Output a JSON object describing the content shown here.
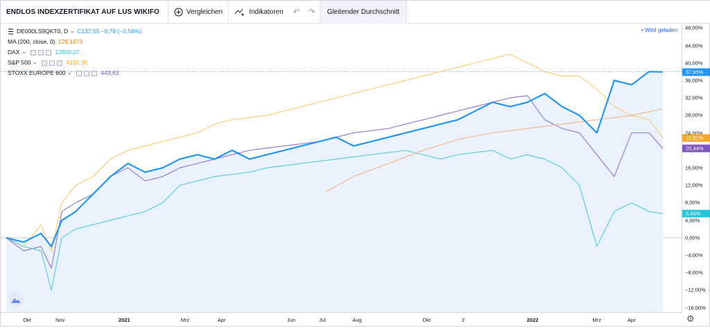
{
  "toolbar": {
    "title": "ENDLOS INDEXZERTIFIKAT AUF LUS WIKIFO",
    "compare_label": "Vergleichen",
    "indicators_label": "Indikatoren",
    "undo_label": "↶",
    "redo_label": "↷",
    "ma_tab_label": "Gleitender Durchschnitt"
  },
  "legend": {
    "main": {
      "symbol": "DE000LS9QKT0, D",
      "values": "C137,55  −0,78 (−0,56%)"
    },
    "ma": {
      "label": "MA (200, close, 0)",
      "value": "129,1673"
    },
    "dax": {
      "label": "DAX",
      "value": "13939,07"
    },
    "sp500": {
      "label": "S&P 500",
      "value": "4155,38"
    },
    "stoxx": {
      "label": "STOXX EUROPE 600",
      "value": "443,83"
    }
  },
  "loaded_label": "• Wird geladen",
  "colors": {
    "main": "#2196f3",
    "ma": "#f6b78e",
    "dax": "#5bcdd9",
    "sp500": "#f9ce7a",
    "stoxx": "#9b7ad1",
    "area": "#eaf3fd"
  },
  "icons": {
    "compare": "plus-circle-icon",
    "indicators": "indicators-icon",
    "settings": "gear-icon",
    "logo": "tradingview-logo-icon"
  },
  "chart_data": {
    "type": "line",
    "ylabel": "",
    "ylim": [
      -17,
      49
    ],
    "y_ticks": [
      "48,00%",
      "44,00%",
      "40,00%",
      "36,00%",
      "32,00%",
      "28,00%",
      "24,00%",
      "20,00%",
      "16,00%",
      "12,00%",
      "8,00%",
      "4,00%",
      "0,00%",
      "−4,00%",
      "−8,00%",
      "−12,00%",
      "−16,00%"
    ],
    "x_ticks": [
      {
        "label": "Okt",
        "x": 0.6,
        "bold": false
      },
      {
        "label": "Nov",
        "x": 1.55,
        "bold": false
      },
      {
        "label": "2021",
        "x": 3.4,
        "bold": true
      },
      {
        "label": "Mrz",
        "x": 5.15,
        "bold": false
      },
      {
        "label": "Apr",
        "x": 6.2,
        "bold": false
      },
      {
        "label": "Jun",
        "x": 8.2,
        "bold": false
      },
      {
        "label": "Jul",
        "x": 9.1,
        "bold": false
      },
      {
        "label": "Aug",
        "x": 10.1,
        "bold": false
      },
      {
        "label": "Okt",
        "x": 12.1,
        "bold": false
      },
      {
        "label": "2",
        "x": 13.15,
        "bold": false
      },
      {
        "label": "2022",
        "x": 15.15,
        "bold": true
      },
      {
        "label": "Mrz",
        "x": 17.0,
        "bold": false
      },
      {
        "label": "Apr",
        "x": 18.0,
        "bold": false
      }
    ],
    "last_values": [
      {
        "label": "37,95%",
        "value": 37.95,
        "color": "#2196f3"
      },
      {
        "label": "22,81%",
        "value": 22.81,
        "color": "#f9a825"
      },
      {
        "label": "20,44%",
        "value": 20.44,
        "color": "#7e57c2"
      },
      {
        "label": "5,45%",
        "value": 5.45,
        "color": "#26c6da"
      }
    ],
    "series": [
      {
        "key": "sp500",
        "x": [
          0,
          0.5,
          1,
          1.3,
          1.6,
          2,
          2.5,
          3,
          3.5,
          4,
          4.5,
          5,
          5.5,
          6,
          6.5,
          7,
          7.5,
          8,
          8.5,
          9,
          9.5,
          10,
          10.5,
          11,
          11.5,
          12,
          12.5,
          13,
          13.5,
          14,
          14.5,
          15,
          15.5,
          16,
          16.5,
          17,
          17.5,
          18,
          18.5,
          18.9
        ],
        "y": [
          0,
          -2,
          3,
          -3,
          8,
          12,
          14,
          18,
          20,
          21,
          22,
          23,
          24,
          26,
          27,
          27.5,
          28,
          29,
          30,
          31,
          32,
          33,
          34,
          35,
          36,
          37,
          38,
          39,
          40,
          41,
          42,
          40,
          38,
          37,
          37,
          34,
          30,
          28,
          27,
          22.8
        ]
      },
      {
        "key": "stoxx",
        "x": [
          0,
          0.5,
          1,
          1.3,
          1.6,
          2,
          2.5,
          3,
          3.5,
          4,
          4.5,
          5,
          5.5,
          6,
          6.5,
          7,
          7.5,
          8,
          8.5,
          9,
          9.5,
          10,
          10.5,
          11,
          11.5,
          12,
          12.5,
          13,
          13.5,
          14,
          14.5,
          15,
          15.5,
          16,
          16.5,
          17,
          17.5,
          18,
          18.5,
          18.9
        ],
        "y": [
          0,
          -3,
          -2,
          -7,
          6,
          8,
          10,
          14,
          16,
          13,
          14,
          16,
          17,
          18,
          19,
          20,
          20.5,
          21,
          21.5,
          22,
          23,
          24,
          24.5,
          25,
          26,
          27,
          28,
          29,
          30,
          31,
          32,
          32.5,
          27,
          25,
          24,
          19,
          14,
          24,
          24,
          20.4
        ]
      },
      {
        "key": "dax",
        "x": [
          0,
          0.5,
          1,
          1.3,
          1.6,
          2,
          2.5,
          3,
          3.5,
          4,
          4.5,
          5,
          5.5,
          6,
          6.5,
          7,
          7.5,
          8,
          8.5,
          9,
          9.5,
          10,
          10.5,
          11,
          11.5,
          12,
          12.5,
          13,
          13.5,
          14,
          14.5,
          15,
          15.5,
          16,
          16.5,
          17,
          17.5,
          18,
          18.5,
          18.9
        ],
        "y": [
          0,
          -2,
          -3,
          -12,
          0,
          2,
          3,
          4,
          5,
          6,
          8,
          12,
          13,
          14,
          14.5,
          15,
          16,
          16.5,
          17,
          17.5,
          18,
          18.5,
          19,
          19.5,
          20,
          19,
          18,
          19,
          19.5,
          20,
          18,
          19,
          18,
          16,
          12,
          -2,
          6,
          8,
          6,
          5.5
        ]
      },
      {
        "key": "main",
        "x": [
          0,
          0.5,
          1,
          1.3,
          1.6,
          2,
          2.5,
          3,
          3.5,
          4,
          4.5,
          5,
          5.5,
          6,
          6.5,
          7,
          7.5,
          8,
          8.5,
          9,
          9.5,
          10,
          10.5,
          11,
          11.5,
          12,
          12.5,
          13,
          13.5,
          14,
          14.5,
          15,
          15.5,
          16,
          16.5,
          17,
          17.5,
          18,
          18.5,
          18.9
        ],
        "y": [
          0,
          -1,
          1,
          -2,
          4,
          6,
          10,
          14,
          17,
          15,
          16,
          18,
          19,
          18,
          20,
          18,
          19,
          20,
          21,
          22,
          23,
          21,
          22,
          23,
          24,
          25,
          26,
          27,
          29,
          31,
          30,
          31,
          33,
          30,
          28,
          24,
          36,
          35,
          38,
          37.95
        ]
      },
      {
        "key": "ma",
        "x": [
          9.2,
          10,
          11,
          12,
          13,
          14,
          14.5,
          15,
          16,
          17,
          18,
          18.9
        ],
        "y": [
          10.5,
          14,
          17,
          20,
          22.5,
          24,
          24.5,
          25,
          26,
          27,
          28,
          29.5
        ]
      }
    ]
  }
}
